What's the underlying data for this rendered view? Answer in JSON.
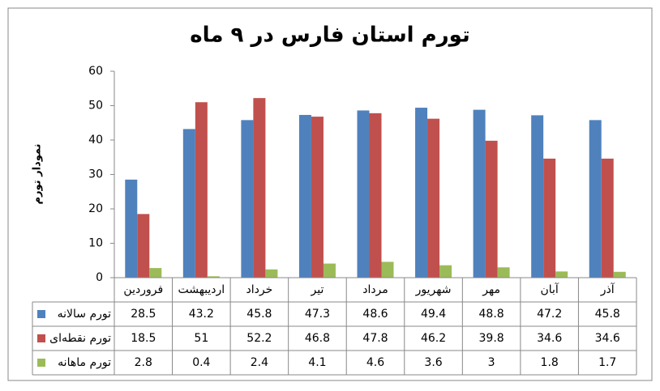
{
  "chart_data": {
    "type": "bar",
    "title": "تورم استان فارس در ۹ ماه",
    "y_label": "نمودار تورم",
    "categories": [
      "فروردین",
      "اردیبهشت",
      "خرداد",
      "تیر",
      "مرداد",
      "شهریور",
      "مهر",
      "آبان",
      "آذر"
    ],
    "series": [
      {
        "name": "تورم سالانه",
        "color": "#4f81bd",
        "values": [
          28.5,
          43.2,
          45.8,
          47.3,
          48.6,
          49.4,
          48.8,
          47.2,
          45.8
        ]
      },
      {
        "name": "تورم نقطه‌ای",
        "color": "#c0504d",
        "values": [
          18.5,
          51,
          52.2,
          46.8,
          47.8,
          46.2,
          39.8,
          34.6,
          34.6
        ]
      },
      {
        "name": "تورم ماهانه",
        "color": "#9bbb59",
        "values": [
          2.8,
          0.4,
          2.4,
          4.1,
          4.6,
          3.6,
          3,
          1.8,
          1.7
        ]
      }
    ],
    "ylim": [
      0,
      60
    ],
    "yticks": [
      0,
      10,
      20,
      30,
      40,
      50,
      60
    ],
    "grid": false,
    "data_table": true
  }
}
